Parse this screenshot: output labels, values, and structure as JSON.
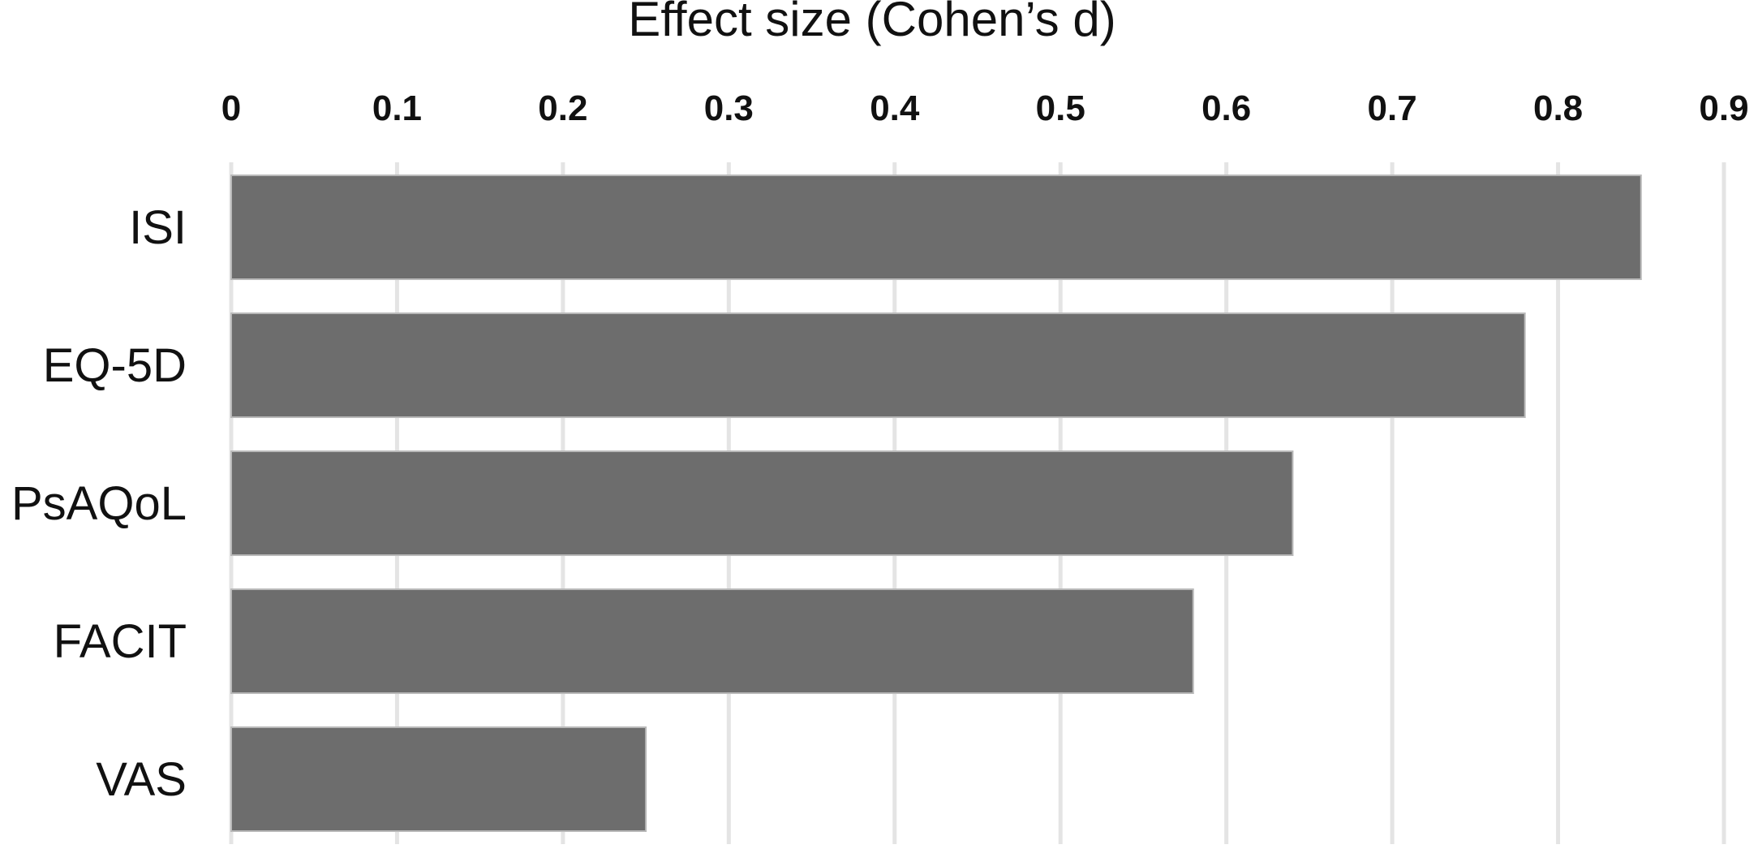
{
  "chart_data": {
    "type": "bar",
    "orientation": "horizontal",
    "xlabel": "Effect size (Cohen’s d)",
    "xlabel_position": "top",
    "ylabel": "",
    "categories": [
      "ISI",
      "EQ-5D",
      "PsAQoL",
      "FACIT",
      "VAS"
    ],
    "values": [
      0.85,
      0.78,
      0.64,
      0.58,
      0.25
    ],
    "xlim": [
      0,
      0.9
    ],
    "x_ticks": [
      "0",
      "0.1",
      "0.2",
      "0.3",
      "0.4",
      "0.5",
      "0.6",
      "0.7",
      "0.8",
      "0.9"
    ],
    "grid": "vertical",
    "legend": "none",
    "colors": {
      "bar": "#6d6d6d",
      "grid": "#e4e4e4",
      "text": "#111111"
    }
  }
}
